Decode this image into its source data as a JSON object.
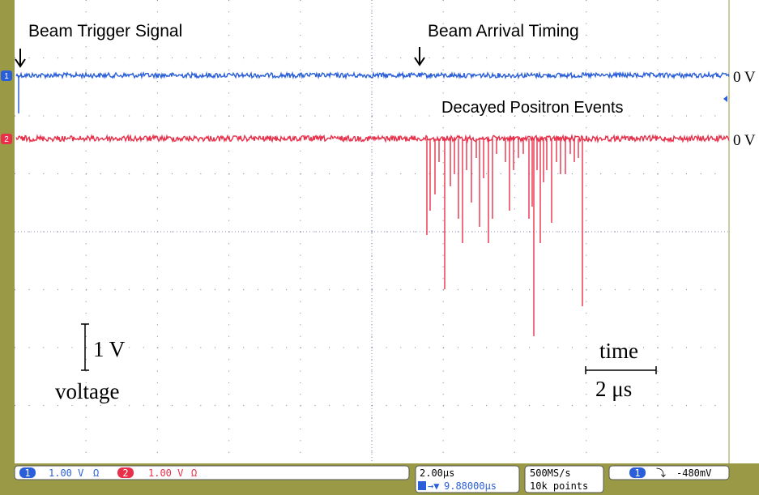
{
  "annotations": {
    "trigger": "Beam Trigger Signal",
    "arrival": "Beam Arrival Timing",
    "events": "Decayed Positron Events"
  },
  "channels": [
    {
      "marker": "1",
      "ground_label": "0 V"
    },
    {
      "marker": "2",
      "ground_label": "0 V"
    }
  ],
  "scale": {
    "voltage_value": "1 V",
    "voltage_label": "voltage",
    "time_label": "time",
    "time_value": "2 μs"
  },
  "status": {
    "ch1_num": "1",
    "ch1_scale": "1.00 V",
    "ch1_coupling": "Ω",
    "ch2_num": "2",
    "ch2_scale": "1.00 V",
    "ch2_coupling": "Ω",
    "timebase": "2.00µs",
    "trigger_pos": "9.88000µs",
    "sample_rate": "500MS/s",
    "record": "10k points",
    "trig_ch": "1",
    "trig_slope": "⤵",
    "trig_level": "-480mV"
  }
}
